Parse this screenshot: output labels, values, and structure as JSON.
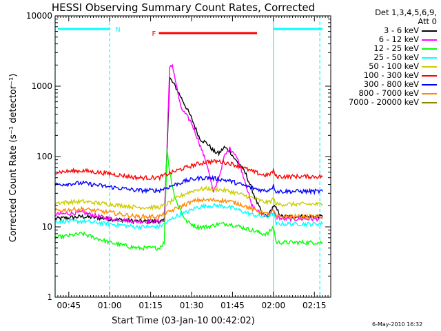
{
  "chart_data": {
    "type": "line",
    "title": "HESSI Observing Summary Count Rates, Corrected",
    "xlabel": "Start Time (03-Jan-10 00:42:02)",
    "ylabel": "Corrected Count Rate (s⁻¹ detector⁻¹)",
    "y_scale": "log",
    "ylim": [
      1,
      10000
    ],
    "y_ticks": [
      1,
      10,
      100,
      1000,
      10000
    ],
    "y_tick_labels": [
      "1",
      "10",
      "100",
      "1000",
      "10000"
    ],
    "xlim": [
      "00:40",
      "02:21"
    ],
    "x_tick_labels": [
      "00:45",
      "01:00",
      "01:15",
      "01:30",
      "01:45",
      "02:00",
      "02:15"
    ],
    "x_ticks_min": [
      45,
      60,
      75,
      90,
      105,
      120,
      135
    ],
    "grid": false,
    "legend_position": "right",
    "legend_header": [
      "Det 1,3,4,5,6,9,",
      "Att 0"
    ],
    "bars": [
      {
        "label": "",
        "color": "#00ffff",
        "start": "00:41",
        "end": "01:00"
      },
      {
        "label": "N",
        "color": "#00ffff",
        "start": "01:00",
        "end": "01:00"
      },
      {
        "label": "F",
        "color": "#ff0000",
        "start": "01:18",
        "end": "01:54"
      },
      {
        "label": "",
        "color": "#00ffff",
        "start": "02:00",
        "end": "02:18"
      }
    ],
    "vlines": [
      {
        "time": "00:40",
        "color": "#00ffff",
        "style": "solid"
      },
      {
        "time": "01:00",
        "color": "#00ffff",
        "style": "dashed"
      },
      {
        "time": "02:00",
        "color": "#00ffff",
        "style": "solid"
      },
      {
        "time": "02:17",
        "color": "#00ffff",
        "style": "dashed"
      }
    ],
    "series": [
      {
        "name": "3 - 6 keV",
        "color": "#000000",
        "t": [
          40,
          50,
          60,
          70,
          78,
          80,
          82,
          84,
          87,
          90,
          93,
          96,
          98,
          100,
          102,
          104,
          106,
          108,
          110,
          112,
          114,
          116,
          118,
          120,
          121,
          123,
          125,
          130,
          135,
          138
        ],
        "v": [
          13,
          14,
          13,
          12,
          12,
          12,
          1300,
          1000,
          600,
          350,
          180,
          150,
          120,
          110,
          135,
          120,
          90,
          75,
          55,
          35,
          22,
          15,
          14,
          20,
          18,
          14,
          14,
          14,
          14,
          14
        ]
      },
      {
        "name": "6 - 12 keV",
        "color": "#ff00ff",
        "t": [
          40,
          50,
          60,
          70,
          78,
          80,
          82,
          83,
          86,
          90,
          93,
          96,
          98,
          100,
          102,
          104,
          106,
          108,
          110,
          112,
          114,
          116,
          118,
          120,
          121,
          123,
          125,
          130,
          135,
          138
        ],
        "v": [
          15,
          16,
          13,
          12,
          12,
          12,
          1800,
          2000,
          500,
          300,
          150,
          70,
          30,
          50,
          100,
          130,
          110,
          70,
          40,
          20,
          17,
          15,
          15,
          17,
          14,
          13,
          13,
          13,
          13,
          13
        ]
      },
      {
        "name": "12 - 25 keV",
        "color": "#00ff00",
        "t": [
          40,
          50,
          60,
          70,
          78,
          80,
          81,
          82,
          84,
          88,
          92,
          96,
          100,
          104,
          108,
          112,
          116,
          118,
          120,
          121,
          123,
          130,
          135,
          138
        ],
        "v": [
          7,
          8,
          6,
          5,
          5,
          6,
          130,
          60,
          25,
          12,
          10,
          10,
          11,
          11,
          10,
          9,
          8,
          8,
          10,
          6,
          6,
          6,
          6,
          6
        ]
      },
      {
        "name": "25 - 50 keV",
        "color": "#00ffff",
        "t": [
          40,
          50,
          60,
          70,
          78,
          80,
          84,
          88,
          92,
          96,
          100,
          104,
          108,
          112,
          116,
          118,
          120,
          121,
          123,
          130,
          135,
          138
        ],
        "v": [
          12,
          12,
          11,
          10,
          10,
          11,
          14,
          16,
          19,
          20,
          20,
          19,
          17,
          15,
          14,
          14,
          16,
          11,
          11,
          11,
          11,
          11
        ]
      },
      {
        "name": "50 - 100 keV",
        "color": "#cccc00",
        "t": [
          40,
          50,
          60,
          70,
          78,
          80,
          84,
          88,
          92,
          96,
          100,
          104,
          108,
          112,
          116,
          118,
          120,
          121,
          123,
          130,
          135,
          138
        ],
        "v": [
          22,
          23,
          21,
          19,
          19,
          20,
          25,
          30,
          34,
          35,
          34,
          32,
          29,
          26,
          23,
          22,
          25,
          21,
          21,
          21,
          21,
          21
        ]
      },
      {
        "name": "100 - 300 keV",
        "color": "#ff0000",
        "t": [
          40,
          50,
          60,
          70,
          78,
          80,
          84,
          88,
          92,
          96,
          100,
          104,
          108,
          112,
          116,
          118,
          120,
          121,
          123,
          130,
          135,
          138
        ],
        "v": [
          60,
          63,
          57,
          50,
          50,
          54,
          62,
          70,
          78,
          85,
          85,
          80,
          72,
          62,
          55,
          54,
          62,
          52,
          52,
          52,
          52,
          52
        ]
      },
      {
        "name": "300 - 800 keV",
        "color": "#0000ff",
        "t": [
          40,
          50,
          60,
          70,
          78,
          80,
          84,
          88,
          92,
          96,
          100,
          104,
          108,
          112,
          116,
          118,
          120,
          121,
          123,
          130,
          135,
          138
        ],
        "v": [
          40,
          42,
          37,
          33,
          33,
          35,
          40,
          45,
          49,
          50,
          48,
          45,
          40,
          36,
          33,
          33,
          38,
          32,
          32,
          32,
          32,
          32
        ]
      },
      {
        "name": "800 - 7000 keV",
        "color": "#ff8800",
        "t": [
          40,
          50,
          60,
          70,
          78,
          80,
          84,
          88,
          92,
          96,
          100,
          104,
          108,
          112,
          116,
          118,
          120,
          121,
          123,
          130,
          135,
          138
        ],
        "v": [
          17,
          18,
          16,
          14,
          14,
          15,
          18,
          21,
          24,
          24,
          24,
          23,
          21,
          18,
          16,
          15,
          17,
          14,
          14,
          14,
          14,
          14
        ]
      },
      {
        "name": "7000 - 20000 keV",
        "color": "#888800",
        "t": [],
        "v": []
      }
    ]
  },
  "legend": {
    "header_line1": "Det 1,3,4,5,6,9,",
    "header_line2": "Att 0",
    "items": [
      {
        "label": "3 - 6 keV",
        "color": "#000000"
      },
      {
        "label": "6 - 12 keV",
        "color": "#ff00ff"
      },
      {
        "label": "12 - 25 keV",
        "color": "#00ff00"
      },
      {
        "label": "25 - 50 keV",
        "color": "#00ffff"
      },
      {
        "label": "50 - 100 keV",
        "color": "#cccc00"
      },
      {
        "label": "100 - 300 keV",
        "color": "#ff0000"
      },
      {
        "label": "300 - 800 keV",
        "color": "#0000ff"
      },
      {
        "label": "800 - 7000 keV",
        "color": "#ff8800"
      },
      {
        "label": "7000 - 20000 keV",
        "color": "#888800"
      }
    ]
  },
  "timestamp": "6-May-2010 16:32"
}
